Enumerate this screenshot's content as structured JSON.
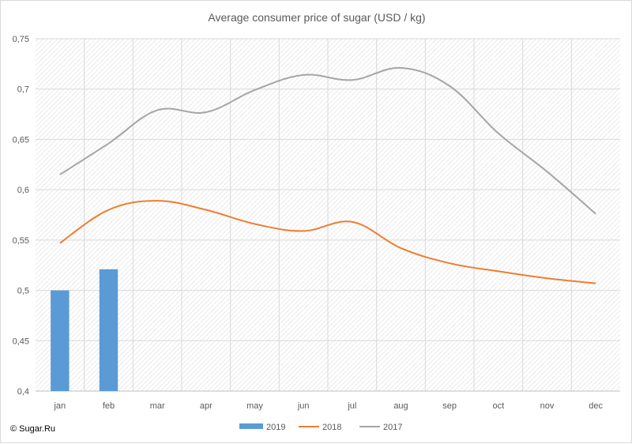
{
  "chart_data": {
    "type": "bar",
    "title": "Average consumer price of sugar (USD / kg)",
    "xlabel": "",
    "ylabel": "",
    "categories": [
      "jan",
      "feb",
      "mar",
      "apr",
      "may",
      "jun",
      "jul",
      "aug",
      "sep",
      "oct",
      "nov",
      "dec"
    ],
    "ylim": [
      0.4,
      0.75
    ],
    "yticks": [
      "0,4",
      "0,45",
      "0,5",
      "0,55",
      "0,6",
      "0,65",
      "0,7",
      "0,75"
    ],
    "ytick_values": [
      0.4,
      0.45,
      0.5,
      0.55,
      0.6,
      0.65,
      0.7,
      0.75
    ],
    "grid": true,
    "legend_position": "bottom",
    "series": [
      {
        "name": "2019",
        "type": "bar",
        "color": "#5b9bd5",
        "values": [
          0.5,
          0.521,
          null,
          null,
          null,
          null,
          null,
          null,
          null,
          null,
          null,
          null
        ]
      },
      {
        "name": "2018",
        "type": "line",
        "color": "#ed7d31",
        "values": [
          0.547,
          0.58,
          0.589,
          0.58,
          0.566,
          0.559,
          0.568,
          0.542,
          0.527,
          0.519,
          0.512,
          0.507
        ]
      },
      {
        "name": "2017",
        "type": "line",
        "color": "#a5a5a5",
        "values": [
          0.615,
          0.646,
          0.679,
          0.677,
          0.699,
          0.714,
          0.709,
          0.721,
          0.703,
          0.656,
          0.618,
          0.576
        ]
      }
    ]
  },
  "copyright": "© Sugar.Ru"
}
